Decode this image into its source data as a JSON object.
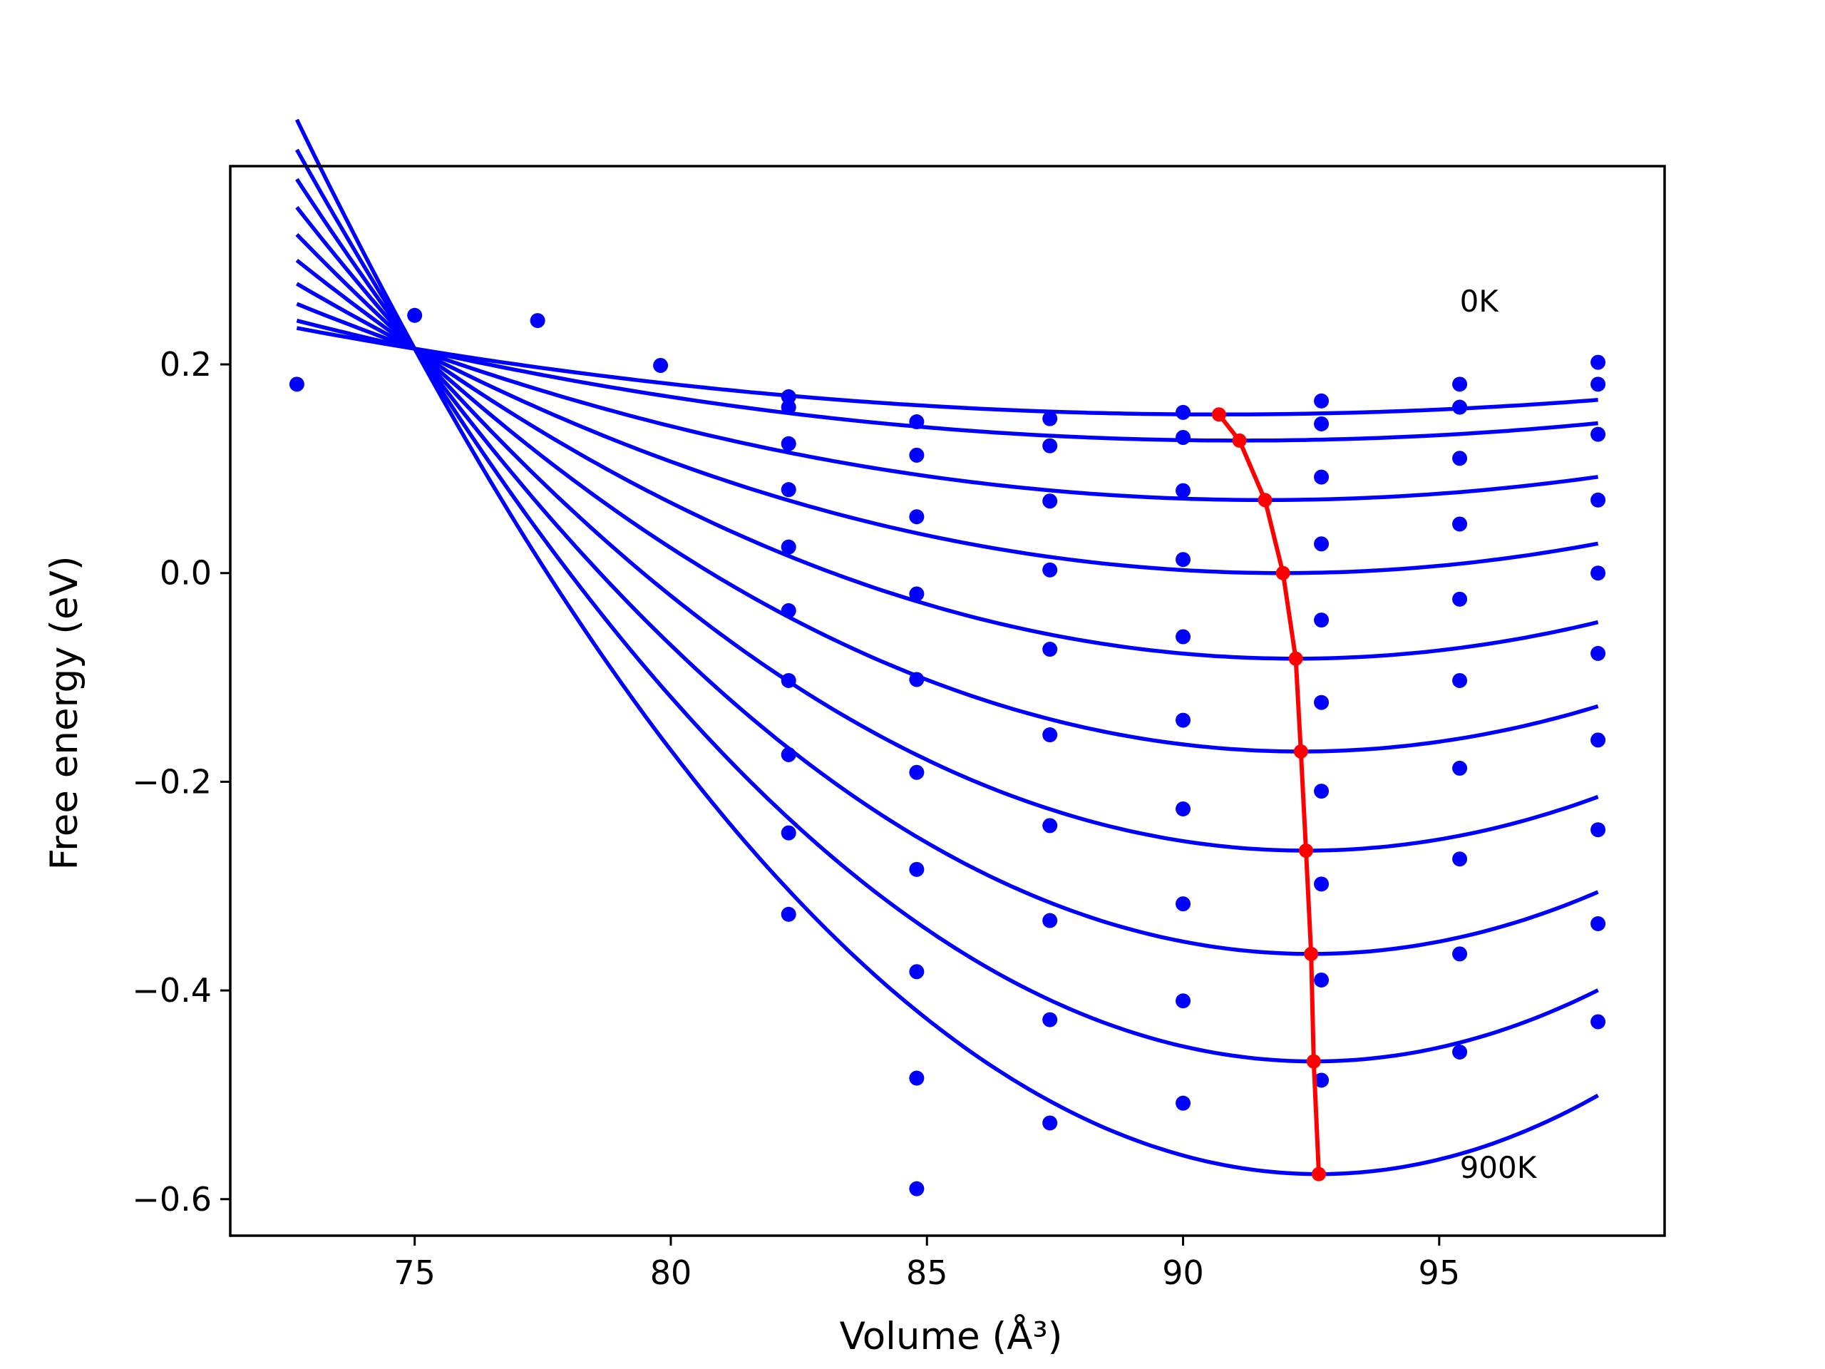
{
  "chart_data": {
    "type": "line",
    "title": "",
    "xlabel": "Volume (Å³)",
    "ylabel": "Free energy (eV)",
    "xlim": [
      71.4,
      99.4
    ],
    "ylim": [
      -0.635,
      0.39
    ],
    "xticks": [
      75,
      80,
      85,
      90,
      95
    ],
    "yticks": [
      -0.6,
      -0.4,
      -0.2,
      0.0,
      0.2
    ],
    "ytick_labels": [
      "−0.6",
      "−0.4",
      "−0.2",
      "0.0",
      "0.2"
    ],
    "grid": false,
    "legend": "none",
    "annotations": [
      {
        "text": "0K",
        "x": 95.4,
        "y": 0.26
      },
      {
        "text": "900K",
        "x": 95.4,
        "y": -0.57
      }
    ],
    "colors": {
      "fits": "#0000ff",
      "points": "#0000ff",
      "minima": "#ff0000"
    },
    "sample_volumes": [
      72.7,
      75.0,
      77.4,
      79.8,
      82.3,
      84.8,
      87.4,
      90.0,
      92.7,
      95.4,
      98.1
    ],
    "fit_range": [
      72.7,
      98.1
    ],
    "fit_pivot": {
      "x": 75.0,
      "y": 0.215
    },
    "curves": [
      {
        "label": "0K",
        "min_volume": 90.7,
        "min_energy": 0.152
      },
      {
        "min_volume": 91.1,
        "min_energy": 0.127
      },
      {
        "min_volume": 91.6,
        "min_energy": 0.07
      },
      {
        "min_volume": 91.95,
        "min_energy": 0.0
      },
      {
        "min_volume": 92.2,
        "min_energy": -0.082
      },
      {
        "min_volume": 92.3,
        "min_energy": -0.171
      },
      {
        "min_volume": 92.4,
        "min_energy": -0.266
      },
      {
        "min_volume": 92.5,
        "min_energy": -0.365
      },
      {
        "min_volume": 92.55,
        "min_energy": -0.468
      },
      {
        "label": "900K",
        "min_volume": 92.65,
        "min_energy": -0.576
      }
    ],
    "points": [
      {
        "x": 72.7,
        "y": 0.181
      },
      {
        "x": 75.0,
        "y": 0.247
      },
      {
        "x": 77.4,
        "y": 0.242
      },
      {
        "x": 79.8,
        "y": 0.199
      },
      {
        "x": 82.3,
        "y": 0.169
      },
      {
        "x": 82.3,
        "y": 0.159
      },
      {
        "x": 82.3,
        "y": 0.124
      },
      {
        "x": 82.3,
        "y": 0.08
      },
      {
        "x": 82.3,
        "y": 0.025
      },
      {
        "x": 82.3,
        "y": -0.036
      },
      {
        "x": 82.3,
        "y": -0.103
      },
      {
        "x": 82.3,
        "y": -0.174
      },
      {
        "x": 82.3,
        "y": -0.249
      },
      {
        "x": 82.3,
        "y": -0.327
      },
      {
        "x": 84.8,
        "y": 0.145
      },
      {
        "x": 84.8,
        "y": 0.113
      },
      {
        "x": 84.8,
        "y": 0.054
      },
      {
        "x": 84.8,
        "y": -0.02
      },
      {
        "x": 84.8,
        "y": -0.102
      },
      {
        "x": 84.8,
        "y": -0.191
      },
      {
        "x": 84.8,
        "y": -0.284
      },
      {
        "x": 84.8,
        "y": -0.382
      },
      {
        "x": 84.8,
        "y": -0.484
      },
      {
        "x": 84.8,
        "y": -0.59
      },
      {
        "x": 87.4,
        "y": 0.148
      },
      {
        "x": 87.4,
        "y": 0.122
      },
      {
        "x": 87.4,
        "y": 0.069
      },
      {
        "x": 87.4,
        "y": 0.003
      },
      {
        "x": 87.4,
        "y": -0.073
      },
      {
        "x": 87.4,
        "y": -0.155
      },
      {
        "x": 87.4,
        "y": -0.242
      },
      {
        "x": 87.4,
        "y": -0.333
      },
      {
        "x": 87.4,
        "y": -0.428
      },
      {
        "x": 87.4,
        "y": -0.527
      },
      {
        "x": 90.0,
        "y": 0.154
      },
      {
        "x": 90.0,
        "y": 0.13
      },
      {
        "x": 90.0,
        "y": 0.079
      },
      {
        "x": 90.0,
        "y": 0.013
      },
      {
        "x": 90.0,
        "y": -0.061
      },
      {
        "x": 90.0,
        "y": -0.141
      },
      {
        "x": 90.0,
        "y": -0.226
      },
      {
        "x": 90.0,
        "y": -0.317
      },
      {
        "x": 90.0,
        "y": -0.41
      },
      {
        "x": 90.0,
        "y": -0.508
      },
      {
        "x": 92.7,
        "y": 0.165
      },
      {
        "x": 92.7,
        "y": 0.143
      },
      {
        "x": 92.7,
        "y": 0.092
      },
      {
        "x": 92.7,
        "y": 0.028
      },
      {
        "x": 92.7,
        "y": -0.045
      },
      {
        "x": 92.7,
        "y": -0.124
      },
      {
        "x": 92.7,
        "y": -0.209
      },
      {
        "x": 92.7,
        "y": -0.298
      },
      {
        "x": 92.7,
        "y": -0.39
      },
      {
        "x": 92.7,
        "y": -0.486
      },
      {
        "x": 95.4,
        "y": 0.181
      },
      {
        "x": 95.4,
        "y": 0.159
      },
      {
        "x": 95.4,
        "y": 0.11
      },
      {
        "x": 95.4,
        "y": 0.047
      },
      {
        "x": 95.4,
        "y": -0.025
      },
      {
        "x": 95.4,
        "y": -0.103
      },
      {
        "x": 95.4,
        "y": -0.187
      },
      {
        "x": 95.4,
        "y": -0.274
      },
      {
        "x": 95.4,
        "y": -0.365
      },
      {
        "x": 95.4,
        "y": -0.459
      },
      {
        "x": 98.1,
        "y": 0.202
      },
      {
        "x": 98.1,
        "y": 0.181
      },
      {
        "x": 98.1,
        "y": 0.133
      },
      {
        "x": 98.1,
        "y": 0.07
      },
      {
        "x": 98.1,
        "y": 0.0
      },
      {
        "x": 98.1,
        "y": -0.077
      },
      {
        "x": 98.1,
        "y": -0.16
      },
      {
        "x": 98.1,
        "y": -0.246
      },
      {
        "x": 98.1,
        "y": -0.336
      },
      {
        "x": 98.1,
        "y": -0.43
      }
    ]
  }
}
